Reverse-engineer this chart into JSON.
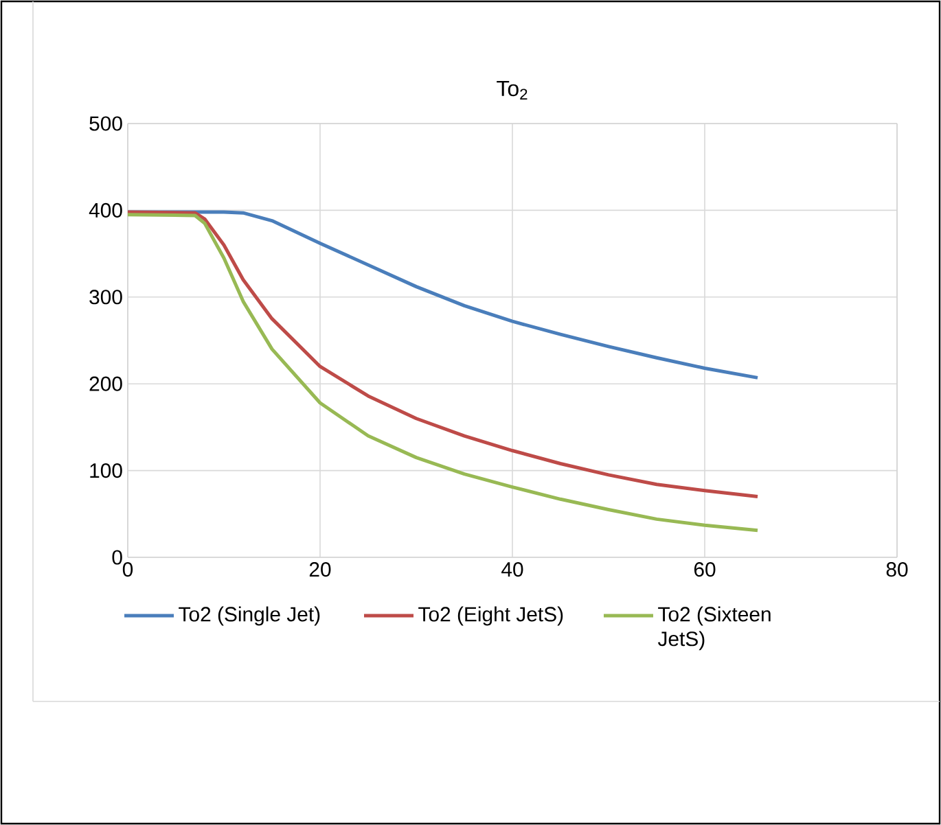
{
  "chart_data": {
    "type": "line",
    "title": "To$_{2}$",
    "xlim": [
      0,
      80
    ],
    "xticks": [
      0,
      20,
      40,
      60,
      80
    ],
    "ylim": [
      0,
      500
    ],
    "yticks": [
      0,
      100,
      200,
      300,
      400,
      500
    ],
    "grid": true,
    "legend": "bottom",
    "marker": "none",
    "line_style": "solid",
    "series": [
      {
        "name": "To2 (Single Jet)",
        "color": "#4a7ebb",
        "x": [
          0,
          5,
          10,
          12,
          15,
          20,
          25,
          30,
          35,
          40,
          45,
          50,
          55,
          60,
          65.5
        ],
        "values": [
          398,
          398,
          398,
          397,
          388,
          362,
          337,
          312,
          290,
          272,
          257,
          243,
          230,
          218,
          207
        ]
      },
      {
        "name": "To2 (Eight JetS)",
        "color": "#be4b48",
        "x": [
          0,
          7,
          8,
          10,
          12,
          15,
          20,
          25,
          30,
          35,
          40,
          45,
          50,
          55,
          60,
          65.5
        ],
        "values": [
          398,
          397,
          390,
          360,
          320,
          275,
          220,
          186,
          160,
          140,
          123,
          108,
          95,
          84,
          77,
          70
        ]
      },
      {
        "name": "To2 (Sixteen JetS)",
        "color": "#98b954",
        "x": [
          0,
          7,
          8,
          10,
          12,
          15,
          20,
          25,
          30,
          35,
          40,
          45,
          50,
          55,
          60,
          65.5
        ],
        "values": [
          395,
          394,
          385,
          345,
          295,
          240,
          178,
          140,
          115,
          96,
          81,
          67,
          55,
          44,
          37,
          31
        ]
      }
    ]
  }
}
